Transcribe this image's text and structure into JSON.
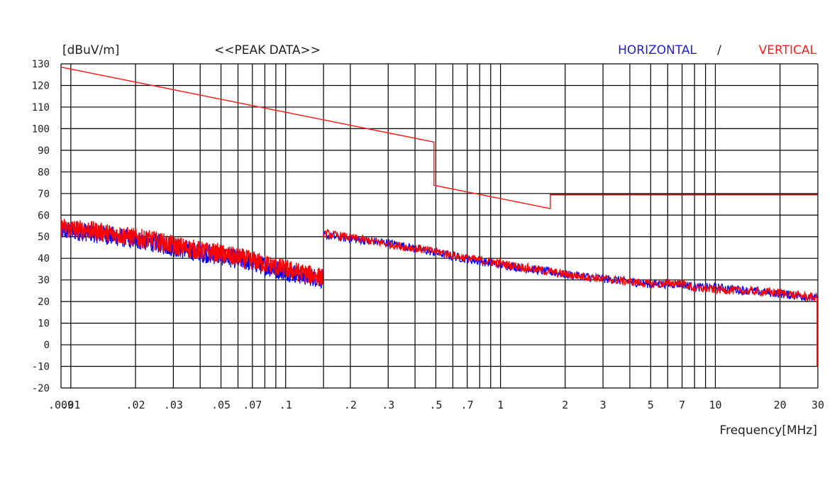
{
  "chart_data": {
    "type": "line",
    "title": "<<PEAK DATA>>",
    "ylabel": "[dBuV/m]",
    "xlabel": "Frequency[MHz]",
    "x_scale": "log",
    "xlim": [
      0.009,
      30
    ],
    "ylim": [
      -20,
      130
    ],
    "grid": true,
    "legend_placement": "top-right",
    "legend": {
      "horizontal": "HORIZONTAL",
      "separator": "/",
      "vertical": "VERTICAL"
    },
    "y_ticks": [
      130,
      120,
      110,
      100,
      90,
      80,
      70,
      60,
      50,
      40,
      30,
      20,
      10,
      0,
      -10,
      -20
    ],
    "y_tick_labels": [
      "130",
      "120",
      "110",
      "100",
      "90",
      "80",
      "70",
      "60",
      "50",
      "40",
      "30",
      "20",
      "10",
      "0",
      "-10",
      "-20"
    ],
    "x_ticks": [
      {
        "value": 0.009,
        "label": ".009"
      },
      {
        "value": 0.01,
        "label": ".01"
      },
      {
        "value": 0.02,
        "label": ".02"
      },
      {
        "value": 0.03,
        "label": ".03"
      },
      {
        "value": 0.05,
        "label": ".05"
      },
      {
        "value": 0.07,
        "label": ".07"
      },
      {
        "value": 0.1,
        "label": ".1"
      },
      {
        "value": 0.2,
        "label": ".2"
      },
      {
        "value": 0.3,
        "label": ".3"
      },
      {
        "value": 0.5,
        "label": ".5"
      },
      {
        "value": 0.7,
        "label": ".7"
      },
      {
        "value": 1,
        "label": "1"
      },
      {
        "value": 2,
        "label": "2"
      },
      {
        "value": 3,
        "label": "3"
      },
      {
        "value": 5,
        "label": "5"
      },
      {
        "value": 7,
        "label": "7"
      },
      {
        "value": 10,
        "label": "10"
      },
      {
        "value": 20,
        "label": "20"
      },
      {
        "value": 30,
        "label": "30"
      }
    ],
    "x_gridlines": [
      0.009,
      0.01,
      0.02,
      0.03,
      0.04,
      0.05,
      0.06,
      0.07,
      0.08,
      0.09,
      0.1,
      0.15,
      0.2,
      0.3,
      0.4,
      0.5,
      0.6,
      0.7,
      0.8,
      0.9,
      1,
      2,
      3,
      4,
      5,
      6,
      7,
      8,
      9,
      10,
      20,
      30
    ],
    "limit_line": {
      "color": "#ff2020",
      "points": [
        [
          0.009,
          128.5
        ],
        [
          0.49,
          93.8
        ],
        [
          0.49,
          73.8
        ],
        [
          1.705,
          63.0
        ],
        [
          1.705,
          69.5
        ],
        [
          30,
          69.5
        ]
      ]
    },
    "series": [
      {
        "name": "HORIZONTAL",
        "color": "#0000ff",
        "segments": [
          {
            "points": [
              [
                0.009,
                54.0
              ],
              [
                0.012,
                53.0
              ],
              [
                0.015,
                51.5
              ],
              [
                0.02,
                49.5
              ],
              [
                0.025,
                48.0
              ],
              [
                0.03,
                46.0
              ],
              [
                0.04,
                43.5
              ],
              [
                0.05,
                42.0
              ],
              [
                0.07,
                39.0
              ],
              [
                0.09,
                36.0
              ],
              [
                0.1,
                35.0
              ],
              [
                0.12,
                33.0
              ],
              [
                0.15,
                31.5
              ]
            ],
            "spread": 9
          },
          {
            "points": [
              [
                0.15,
                51.0
              ],
              [
                0.2,
                49.5
              ],
              [
                0.3,
                47.5
              ],
              [
                0.5,
                43.0
              ],
              [
                0.7,
                40.0
              ],
              [
                1,
                37.5
              ],
              [
                2,
                33.0
              ],
              [
                3,
                31.0
              ],
              [
                5,
                28.5
              ],
              [
                7,
                28.5
              ],
              [
                8,
                27.0
              ],
              [
                10,
                27.0
              ],
              [
                20,
                24.0
              ],
              [
                30,
                22.0
              ]
            ],
            "spread": 4
          }
        ]
      },
      {
        "name": "VERTICAL",
        "color": "#ff0000",
        "segments": [
          {
            "points": [
              [
                0.009,
                55.0
              ],
              [
                0.012,
                54.0
              ],
              [
                0.015,
                52.5
              ],
              [
                0.02,
                50.5
              ],
              [
                0.025,
                49.0
              ],
              [
                0.03,
                47.0
              ],
              [
                0.04,
                44.5
              ],
              [
                0.05,
                43.0
              ],
              [
                0.07,
                40.0
              ],
              [
                0.09,
                37.0
              ],
              [
                0.1,
                36.0
              ],
              [
                0.12,
                34.0
              ],
              [
                0.15,
                32.0
              ]
            ],
            "spread": 9
          },
          {
            "points": [
              [
                0.15,
                52.0
              ],
              [
                0.2,
                50.0
              ],
              [
                0.3,
                47.0
              ],
              [
                0.5,
                43.5
              ],
              [
                0.7,
                40.5
              ],
              [
                1,
                38.0
              ],
              [
                2,
                33.0
              ],
              [
                3,
                31.0
              ],
              [
                5,
                28.5
              ],
              [
                7,
                29.0
              ],
              [
                8,
                26.5
              ],
              [
                10,
                26.0
              ],
              [
                20,
                24.5
              ],
              [
                30,
                22.0
              ]
            ],
            "spread": 4
          }
        ]
      }
    ]
  }
}
